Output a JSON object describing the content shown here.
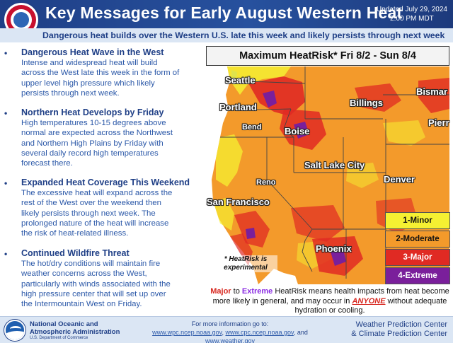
{
  "header": {
    "title": "Key Messages for Early August Western Heat",
    "updated_line1": "Updated July 29, 2024",
    "updated_line2": "2:00 PM MDT"
  },
  "subtitle": "Dangerous heat builds over the Western U.S. late this week and likely persists through next week",
  "messages": [
    {
      "heading": "Dangerous Heat Wave in the West",
      "lines": [
        "Intense and widespread heat will build",
        "across the West late this week in the form of",
        "upper level high pressure which likely",
        "persists through next week."
      ]
    },
    {
      "heading": "Northern Heat Develops by Friday",
      "lines": [
        "High temperatures 10-15 degrees above",
        "normal are expected across the Northwest",
        "and Northern High Plains by Friday with",
        "several daily record high temperatures",
        "forecast there."
      ]
    },
    {
      "heading": "Expanded Heat Coverage This Weekend",
      "lines": [
        "The excessive heat will expand across the",
        "rest of the West over the weekend then",
        "likely persists through next week. The",
        "prolonged nature of the heat will increase",
        "the risk of heat-related illness."
      ]
    },
    {
      "heading": "Continued Wildfire Threat",
      "lines": [
        "The hot/dry conditions will maintain fire",
        "weather concerns across the West,",
        "particularly with winds associated with the",
        "high pressure center that will set up over",
        "the Intermountain West on Friday."
      ]
    }
  ],
  "map": {
    "title": "Maximum HeatRisk* Fri 8/2 - Sun 8/4",
    "cities": {
      "seattle": "Seattle",
      "portland": "Portland",
      "bend": "Bend",
      "boise": "Boise",
      "billings": "Billings",
      "bismarck": "Bismar",
      "pierre": "Pierr",
      "salt_lake_city": "Salt Lake City",
      "denver": "Denver",
      "reno": "Reno",
      "san_francisco": "San Francisco",
      "phoenix": "Phoenix"
    },
    "legend": [
      {
        "label": "1-Minor",
        "color": "#f5f032",
        "text_color": "#111111"
      },
      {
        "label": "2-Moderate",
        "color": "#f39a2b",
        "text_color": "#111111"
      },
      {
        "label": "3-Major",
        "color": "#e02a23",
        "text_color": "#ffffff"
      },
      {
        "label": "4-Extreme",
        "color": "#7a1f9b",
        "text_color": "#ffffff"
      }
    ],
    "note": "* HeatRisk is experimental"
  },
  "explanation": {
    "major": "Major",
    "to": " to ",
    "extreme": "Extreme",
    "text1": " HeatRisk means health impacts from heat become more likely in general, and may occur in ",
    "anyone": "ANYONE",
    "text2": " without adequate hydration or cooling."
  },
  "footer": {
    "noaa_line1": "National Oceanic and",
    "noaa_line2": "Atmospheric Administration",
    "noaa_dept": "U.S. Department of Commerce",
    "more_info": "For more information go to:",
    "link1": "www.wpc.ncep.noaa.gov",
    "link2": "www.cpc.ncep.noaa.gov",
    "link3": "www.weather.gov",
    "sep1": ", ",
    "sep2": ", and ",
    "centers_line1": "Weather Prediction Center",
    "centers_line2": "& Climate Prediction Center"
  },
  "colors": {
    "brand_blue": "#1f3f86",
    "text_blue": "#2b58a8",
    "ocean": "#ffffff",
    "land_base": "#f39a2b"
  }
}
